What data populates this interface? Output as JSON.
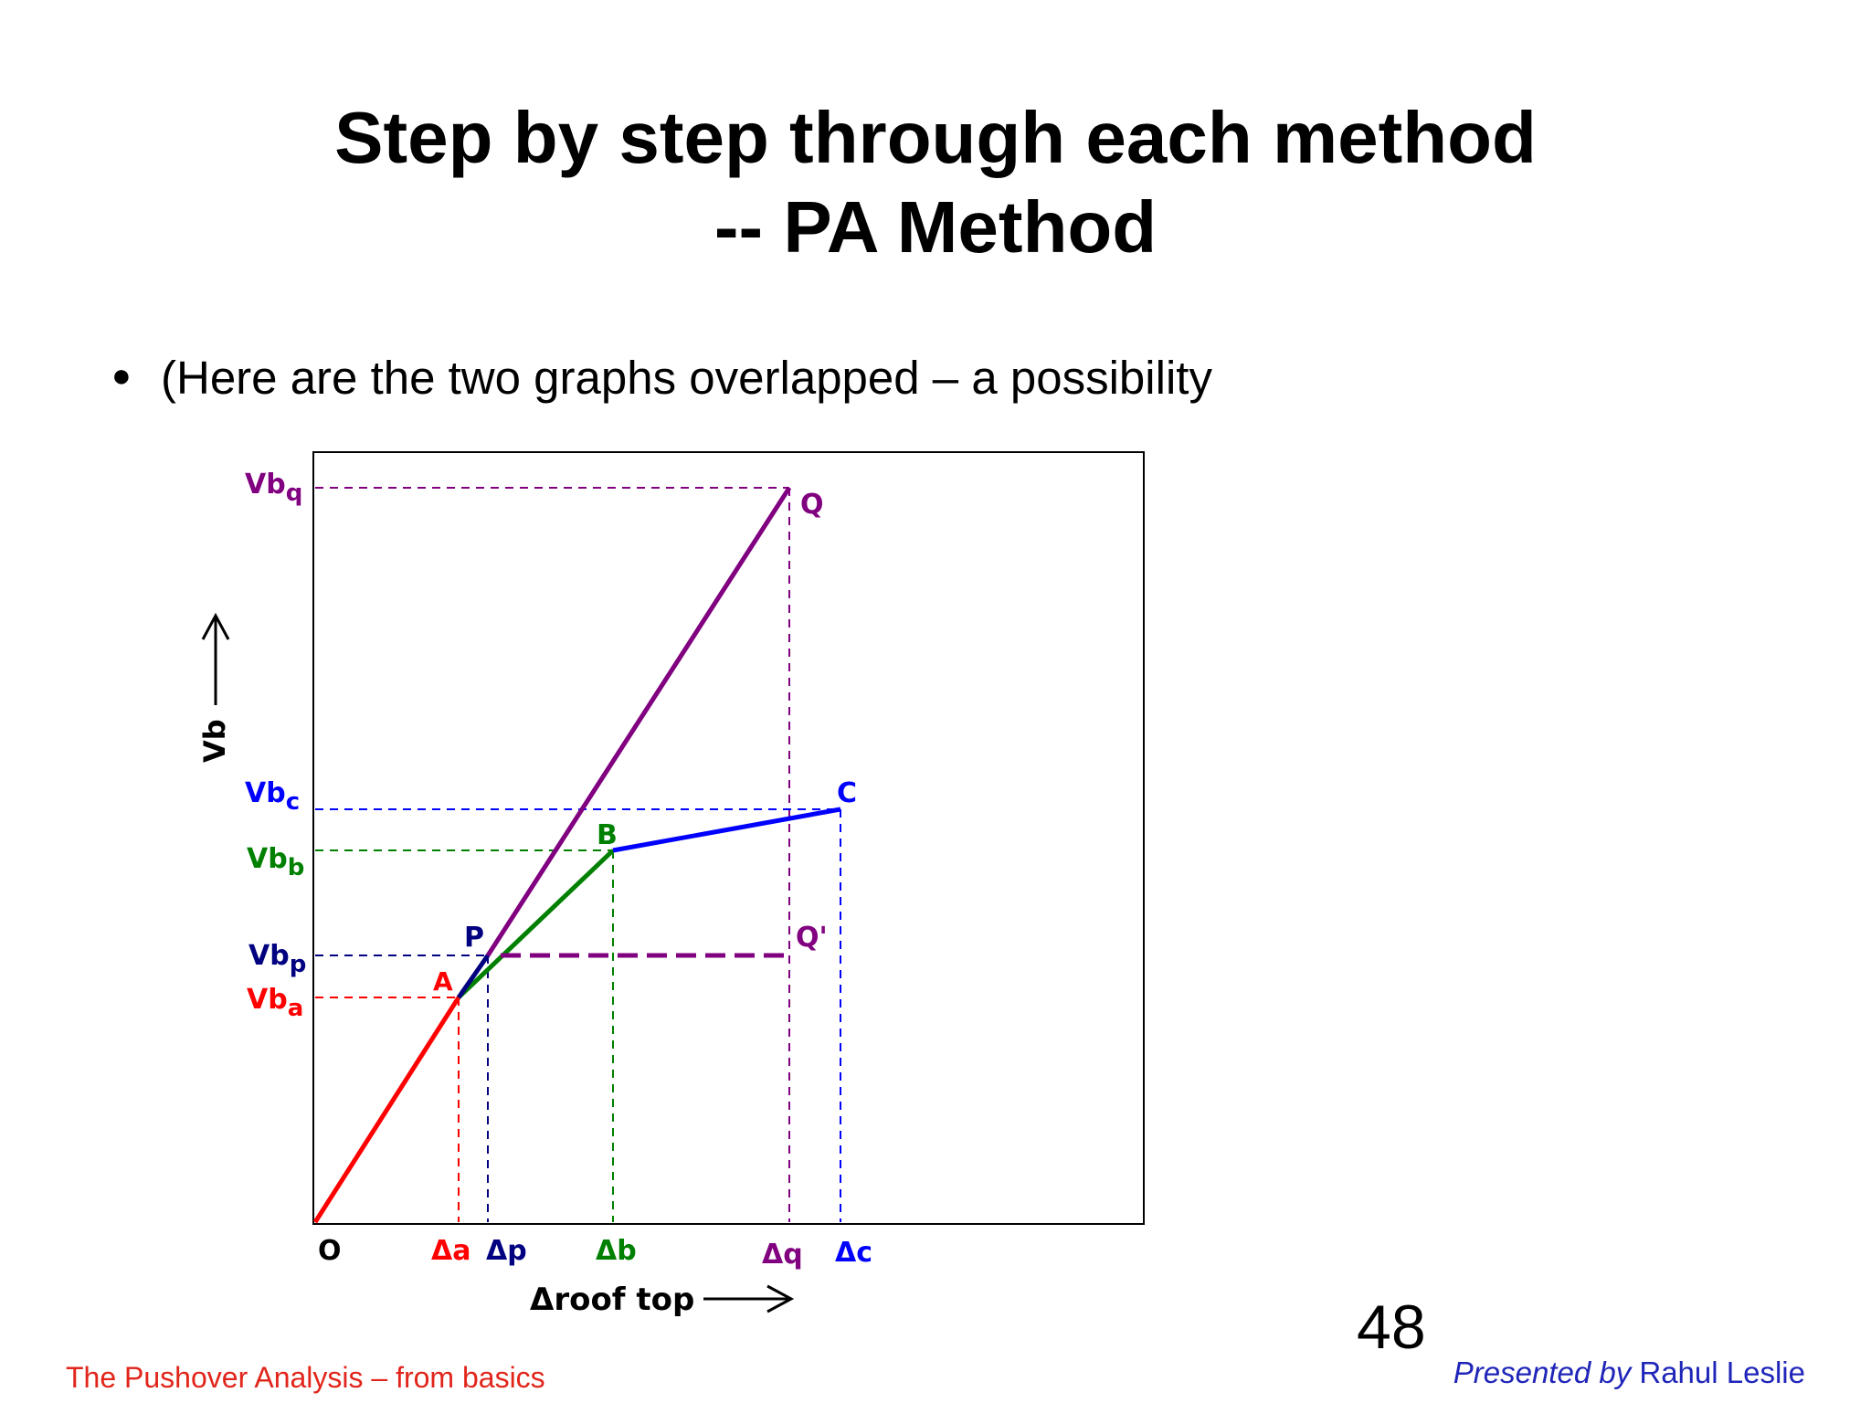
{
  "slide": {
    "title_line1": "Step by step through each method",
    "title_line2": "-- PA Method",
    "bullet": "(Here are the two graphs overlapped – a possibility",
    "page_number": "48",
    "footer_left": "The Pushover Analysis – from basics",
    "footer_right_prefix": "Presented by",
    "footer_right_name": "Rahul Leslie"
  },
  "diagram": {
    "y_axis_label": "Vb",
    "x_axis_label": "Δroof top",
    "origin_label": "O",
    "colors": {
      "red": "#ff0000",
      "green": "#008000",
      "blue": "#0000ff",
      "navy": "#000080",
      "purple": "#800080"
    },
    "points": {
      "A": "A",
      "P": "P",
      "B": "B",
      "C": "C",
      "Q": "Q",
      "Q_prime": "Q'"
    },
    "y_ticks": {
      "Vbq": {
        "base": "Vb",
        "sub": "q"
      },
      "Vbc": {
        "base": "Vb",
        "sub": "c"
      },
      "Vbb": {
        "base": "Vb",
        "sub": "b"
      },
      "Vbp": {
        "base": "Vb",
        "sub": "p"
      },
      "Vba": {
        "base": "Vb",
        "sub": "a"
      }
    },
    "x_ticks": {
      "da": "Δa",
      "dp": "Δp",
      "db": "Δb",
      "dq": "Δq",
      "dc": "Δc"
    }
  }
}
